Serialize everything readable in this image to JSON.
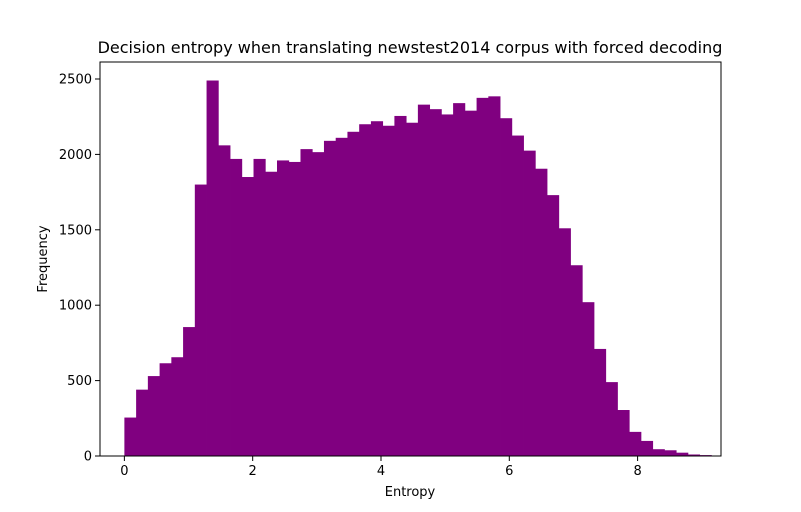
{
  "chart_data": {
    "type": "bar",
    "title": "Decision entropy when translating newstest2014 corpus with forced decoding",
    "xlabel": "Entropy",
    "ylabel": "Frequency",
    "xlim": [
      -0.38,
      9.3
    ],
    "ylim": [
      0,
      2500
    ],
    "bar_color": "#800080",
    "grid": false,
    "x_ticks": [
      0,
      2,
      4,
      6,
      8
    ],
    "y_ticks": [
      0,
      500,
      1000,
      1500,
      2000,
      2500
    ],
    "bin_edges": [
      0.0,
      0.183,
      0.366,
      0.549,
      0.732,
      0.915,
      1.098,
      1.281,
      1.464,
      1.647,
      1.83,
      2.013,
      2.196,
      2.379,
      2.562,
      2.745,
      2.928,
      3.111,
      3.294,
      3.477,
      3.66,
      3.843,
      4.026,
      4.209,
      4.392,
      4.575,
      4.758,
      4.941,
      5.124,
      5.307,
      5.49,
      5.673,
      5.856,
      6.039,
      6.222,
      6.405,
      6.588,
      6.771,
      6.954,
      7.137,
      7.32,
      7.503,
      7.686,
      7.869,
      8.052,
      8.235,
      8.418,
      8.601,
      8.784,
      8.967,
      9.15
    ],
    "values": [
      255,
      440,
      530,
      615,
      655,
      855,
      1800,
      2490,
      2060,
      1970,
      1850,
      1970,
      1885,
      1960,
      1950,
      2035,
      2015,
      2090,
      2110,
      2150,
      2200,
      2220,
      2190,
      2255,
      2210,
      2330,
      2300,
      2265,
      2340,
      2290,
      2375,
      2385,
      2240,
      2125,
      2025,
      1905,
      1730,
      1510,
      1265,
      1020,
      710,
      490,
      305,
      160,
      100,
      45,
      38,
      22,
      10,
      6
    ]
  }
}
